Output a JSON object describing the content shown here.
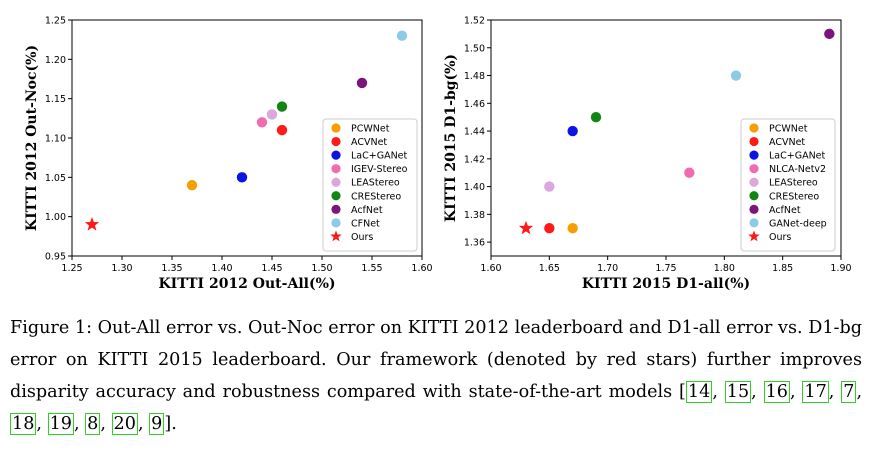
{
  "chart_data": [
    {
      "type": "scatter",
      "xlabel": "KITTI 2012 Out-All(%)",
      "ylabel": "KITTI 2012 Out-Noc(%)",
      "xlim": [
        1.25,
        1.6
      ],
      "ylim": [
        0.95,
        1.25
      ],
      "xticks": [
        "1.25",
        "1.30",
        "1.35",
        "1.40",
        "1.45",
        "1.50",
        "1.55",
        "1.60"
      ],
      "yticks": [
        "0.95",
        "1.00",
        "1.05",
        "1.10",
        "1.15",
        "1.20",
        "1.25"
      ],
      "legend_position": "lower-right",
      "series": [
        {
          "name": "PCWNet",
          "color": "#f5a000",
          "marker": "circle",
          "x": 1.37,
          "y": 1.04
        },
        {
          "name": "ACVNet",
          "color": "#ff1a1a",
          "marker": "circle",
          "x": 1.46,
          "y": 1.11
        },
        {
          "name": "LaC+GANet",
          "color": "#0a14e6",
          "marker": "circle",
          "x": 1.42,
          "y": 1.05
        },
        {
          "name": "IGEV-Stereo",
          "color": "#f06bb0",
          "marker": "circle",
          "x": 1.44,
          "y": 1.12
        },
        {
          "name": "LEAStereo",
          "color": "#dda6dd",
          "marker": "circle",
          "x": 1.45,
          "y": 1.13
        },
        {
          "name": "CREStereo",
          "color": "#128512",
          "marker": "circle",
          "x": 1.46,
          "y": 1.14
        },
        {
          "name": "AcfNet",
          "color": "#7b147b",
          "marker": "circle",
          "x": 1.54,
          "y": 1.17
        },
        {
          "name": "CFNet",
          "color": "#8ccbe8",
          "marker": "circle",
          "x": 1.58,
          "y": 1.23
        },
        {
          "name": "Ours",
          "color": "#ff1a1a",
          "marker": "star",
          "x": 1.27,
          "y": 0.99
        }
      ]
    },
    {
      "type": "scatter",
      "xlabel": "KITTI 2015 D1-all(%)",
      "ylabel": "KITTI 2015 D1-bg(%)",
      "xlim": [
        1.6,
        1.9
      ],
      "ylim": [
        1.35,
        1.52
      ],
      "xticks": [
        "1.60",
        "1.65",
        "1.70",
        "1.75",
        "1.80",
        "1.85",
        "1.90"
      ],
      "yticks": [
        "1.36",
        "1.38",
        "1.40",
        "1.42",
        "1.44",
        "1.46",
        "1.48",
        "1.50",
        "1.52"
      ],
      "legend_position": "lower-right",
      "series": [
        {
          "name": "PCWNet",
          "color": "#f5a000",
          "marker": "circle",
          "x": 1.67,
          "y": 1.37
        },
        {
          "name": "ACVNet",
          "color": "#ff1a1a",
          "marker": "circle",
          "x": 1.65,
          "y": 1.37
        },
        {
          "name": "LaC+GANet",
          "color": "#0a14e6",
          "marker": "circle",
          "x": 1.67,
          "y": 1.44
        },
        {
          "name": "NLCA-Netv2",
          "color": "#f06bb0",
          "marker": "circle",
          "x": 1.77,
          "y": 1.41
        },
        {
          "name": "LEAStereo",
          "color": "#dda6dd",
          "marker": "circle",
          "x": 1.65,
          "y": 1.4
        },
        {
          "name": "CREStereo",
          "color": "#128512",
          "marker": "circle",
          "x": 1.69,
          "y": 1.45
        },
        {
          "name": "AcfNet",
          "color": "#7b147b",
          "marker": "circle",
          "x": 1.89,
          "y": 1.51
        },
        {
          "name": "GANet-deep",
          "color": "#8ccbe8",
          "marker": "circle",
          "x": 1.81,
          "y": 1.48
        },
        {
          "name": "Ours",
          "color": "#ff1a1a",
          "marker": "star",
          "x": 1.63,
          "y": 1.37
        }
      ]
    }
  ],
  "caption": {
    "text": "Figure 1: Out-All error vs. Out-Noc error on KITTI 2012 leaderboard and D1-all error vs. D1-bg error on KITTI 2015 leaderboard. Our framework (denoted by red stars) further improves disparity accuracy and robustness compared with state-of-the-art models",
    "citations": [
      "14",
      "15",
      "16",
      "17",
      "7",
      "18",
      "19",
      "8",
      "20",
      "9"
    ],
    "citation_color": "#29d129"
  }
}
